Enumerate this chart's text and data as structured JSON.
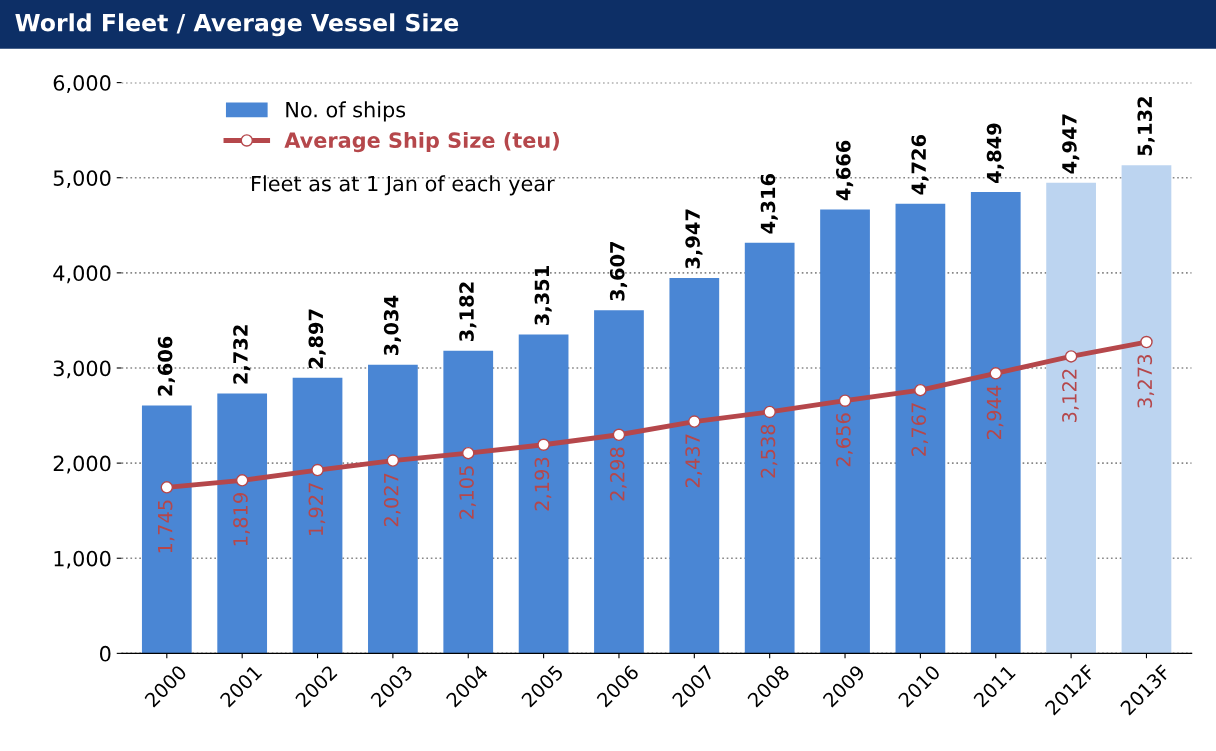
{
  "chart_data": {
    "type": "bar",
    "title": "World Fleet / Average Vessel Size",
    "categories": [
      "2000",
      "2001",
      "2002",
      "2003",
      "2004",
      "2005",
      "2006",
      "2007",
      "2008",
      "2009",
      "2010",
      "2011",
      "2012F",
      "2013F"
    ],
    "series": [
      {
        "name": "No. of ships",
        "color": "#4a86d4",
        "colors": [
          "#4a86d4",
          "#4a86d4",
          "#4a86d4",
          "#4a86d4",
          "#4a86d4",
          "#4a86d4",
          "#4a86d4",
          "#4a86d4",
          "#4a86d4",
          "#4a86d4",
          "#4a86d4",
          "#4a86d4",
          "#bcd4f0",
          "#bcd4f0"
        ],
        "values": [
          2606,
          2732,
          2897,
          3034,
          3182,
          3351,
          3607,
          3947,
          4316,
          4666,
          4726,
          4849,
          4947,
          5132
        ],
        "value_labels": [
          "2,606",
          "2,732",
          "2,897",
          "3,034",
          "3,182",
          "3,351",
          "3,607",
          "3,947",
          "4,316",
          "4,666",
          "4,726",
          "4,849",
          "4,947",
          "5,132"
        ]
      },
      {
        "name": "Average Ship Size (teu)",
        "type": "line",
        "color": "#b5474b",
        "marker": "circle",
        "values": [
          1745,
          1819,
          1927,
          2027,
          2105,
          2193,
          2298,
          2437,
          2538,
          2656,
          2767,
          2944,
          3122,
          3273
        ],
        "value_labels": [
          "1,745",
          "1,819",
          "1,927",
          "2,027",
          "2,105",
          "2,193",
          "2,298",
          "2,437",
          "2,538",
          "2,656",
          "2,767",
          "2,944",
          "3,122",
          "3,273"
        ]
      }
    ],
    "ylim": [
      0,
      6000
    ],
    "yticks": [
      {
        "value": 0,
        "label": "0"
      },
      {
        "value": 1000,
        "label": "1,000"
      },
      {
        "value": 2000,
        "label": "2,000"
      },
      {
        "value": 3000,
        "label": "3,000"
      },
      {
        "value": 4000,
        "label": "4,000"
      },
      {
        "value": 5000,
        "label": "5,000"
      },
      {
        "value": 6000,
        "label": "6,000"
      }
    ],
    "grid": "y",
    "legend": "top left",
    "line_style": "solid",
    "annotations": [
      "Fleet as at 1 Jan of each year"
    ]
  }
}
